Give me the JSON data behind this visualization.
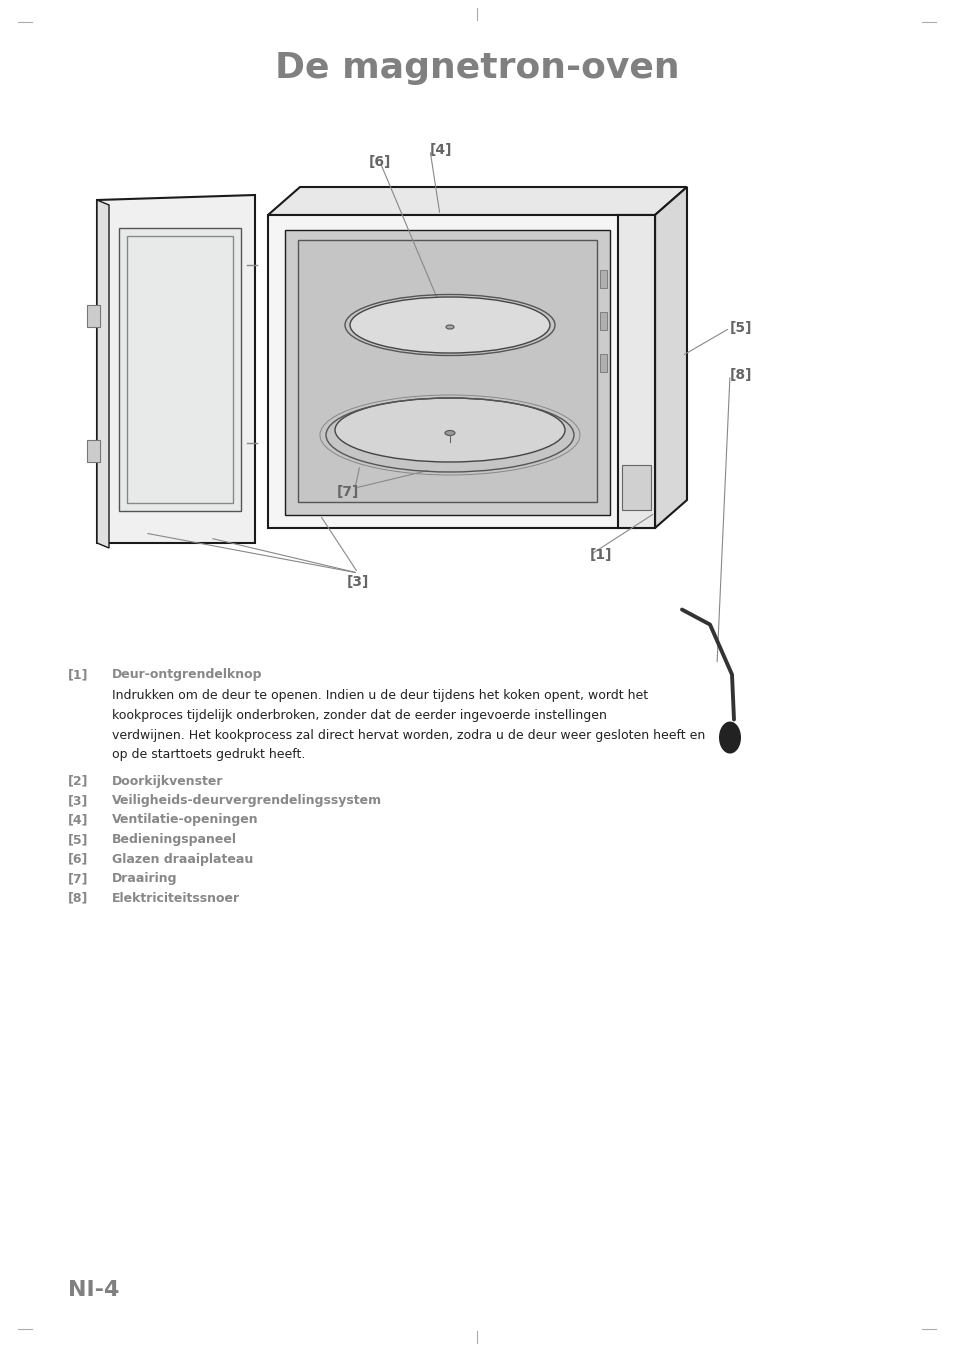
{
  "title": "De magnetron-oven",
  "title_color": "#808080",
  "title_fontsize": 26,
  "page_label": "NI-4",
  "page_label_color": "#808080",
  "page_label_fontsize": 16,
  "background_color": "#ffffff",
  "label_color": "#666666",
  "label_fontsize": 10,
  "items": [
    {
      "num": "[1]",
      "title": "Deur-ontgrendelknop",
      "desc": "Indrukken om de deur te openen. Indien u de deur tijdens het koken opent, wordt het\nkookproces tijdelijk onderbroken, zonder dat de eerder ingevoerde instellingen\nverdwijnen. Het kookprocess zal direct hervat worden, zodra u de deur weer gesloten heeft en\nop de starttoets gedrukt heeft."
    },
    {
      "num": "[2]",
      "title": "Doorkijkvenster",
      "desc": ""
    },
    {
      "num": "[3]",
      "title": "Veiligheids-deurvergrendelingssystem",
      "desc": ""
    },
    {
      "num": "[4]",
      "title": "Ventilatie-openingen",
      "desc": ""
    },
    {
      "num": "[5]",
      "title": "Bedieningspaneel",
      "desc": ""
    },
    {
      "num": "[6]",
      "title": "Glazen draaiplateau",
      "desc": ""
    },
    {
      "num": "[7]",
      "title": "Draairing",
      "desc": ""
    },
    {
      "num": "[8]",
      "title": "Elektriciteitssnoer",
      "desc": ""
    }
  ],
  "item_num_color": "#888888",
  "item_title_color": "#888888",
  "item_desc_color": "#222222",
  "item_fontsize": 9.0
}
